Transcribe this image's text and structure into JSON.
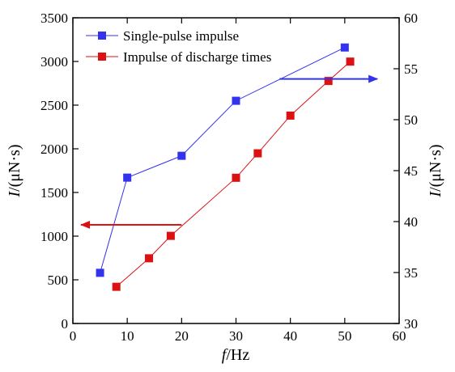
{
  "chart_data": {
    "type": "line",
    "title": "",
    "xlabel": {
      "italic": "f",
      "rest": "/Hz"
    },
    "ylabel_left": {
      "italic": "I",
      "rest": "/(μN·s)"
    },
    "ylabel_right": {
      "italic": "I",
      "rest": "/(μN·s)"
    },
    "xlim": [
      0,
      60
    ],
    "ylim_left": [
      0,
      3500
    ],
    "ylim_right": [
      30,
      60
    ],
    "x_ticks": [
      0,
      10,
      20,
      30,
      40,
      50,
      60
    ],
    "y_left_ticks": [
      0,
      500,
      1000,
      1500,
      2000,
      2500,
      3000,
      3500
    ],
    "y_right_ticks": [
      30,
      35,
      40,
      45,
      50,
      55,
      60
    ],
    "grid": false,
    "legend_position": "top-left",
    "series": [
      {
        "name": "Single-pulse impulse",
        "axis": "left",
        "color": "#3333ee",
        "x": [
          5,
          10,
          20,
          30,
          50
        ],
        "y": [
          580,
          1670,
          1920,
          2550,
          3160
        ]
      },
      {
        "name": "Impulse of discharge times",
        "axis": "right",
        "color": "#dd1111",
        "x": [
          8,
          14,
          18,
          30,
          34,
          40,
          47,
          51
        ],
        "y": [
          33.6,
          36.4,
          38.6,
          44.3,
          46.7,
          50.4,
          53.8,
          55.7
        ]
      }
    ],
    "annotations": [
      {
        "type": "arrow",
        "points_to": "right-axis",
        "color": "#3333ee",
        "from_x": 38,
        "to_x": 56,
        "y_right": 54
      },
      {
        "type": "arrow",
        "points_to": "left-axis",
        "color": "#dd1111",
        "from_x": 20,
        "to_x": 1.5,
        "y_left": 1130
      }
    ]
  }
}
